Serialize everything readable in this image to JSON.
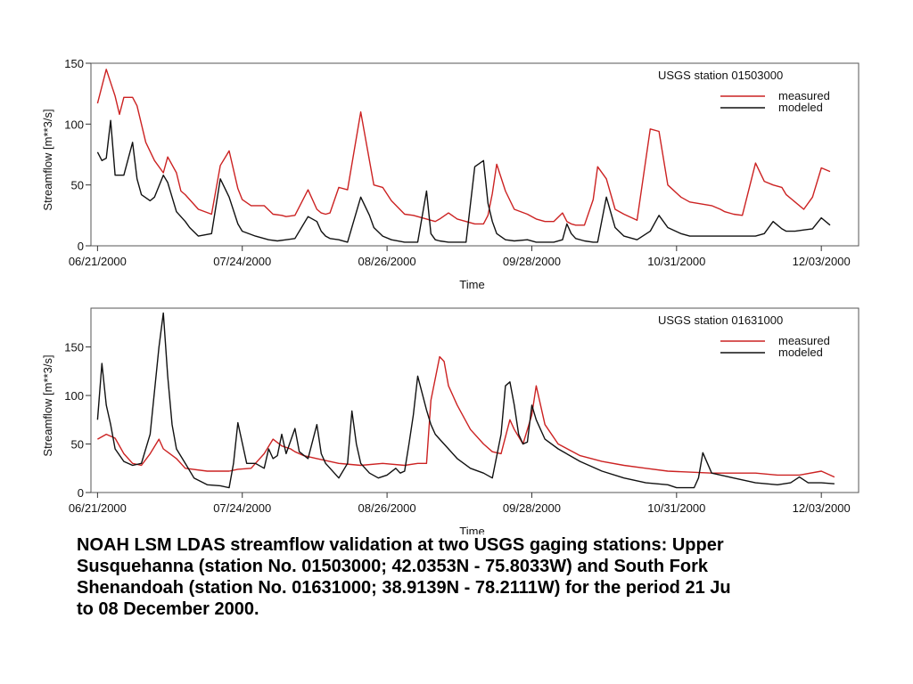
{
  "caption": {
    "lines": [
      "NOAH LSM LDAS streamflow validation at two USGS gaging stations:  Upper",
      "Susquehanna (station No. 01503000; 42.0353N - 75.8033W) and South Fork",
      "Shenandoah (station No. 01631000; 38.9139N - 78.2111W) for the period 21 Ju",
      "to 08 December 2000."
    ]
  },
  "colors": {
    "measured": "#cc2222",
    "modeled": "#111111"
  },
  "chart_data": [
    {
      "type": "line",
      "station_label": "USGS station 01503000",
      "xlabel": "Time",
      "ylabel": "Streamflow [m**3/s]",
      "ylim": [
        0,
        150
      ],
      "yticks": [
        0,
        50,
        100,
        150
      ],
      "xlim": [
        -1.5,
        173.5
      ],
      "xticks": [
        {
          "x": 0,
          "label": "06/21/2000"
        },
        {
          "x": 33,
          "label": "07/24/2000"
        },
        {
          "x": 66,
          "label": "08/26/2000"
        },
        {
          "x": 99,
          "label": "09/28/2000"
        },
        {
          "x": 132,
          "label": "10/31/2000"
        },
        {
          "x": 165,
          "label": "12/03/2000"
        }
      ],
      "legend": "top-right",
      "series": [
        {
          "name": "measured",
          "x": [
            0,
            2,
            4,
            5,
            6,
            8,
            9,
            11,
            13,
            15,
            16,
            18,
            19,
            20,
            23,
            26,
            28,
            30,
            32,
            33,
            35,
            38,
            40,
            42,
            43,
            45,
            48,
            50,
            51,
            52,
            53,
            55,
            57,
            60,
            63,
            65,
            67,
            70,
            72,
            73,
            75,
            76,
            77,
            78,
            80,
            82,
            84,
            86,
            88,
            89,
            90,
            91,
            93,
            95,
            98,
            100,
            102,
            104,
            106,
            107,
            108,
            109,
            111,
            113,
            114,
            116,
            118,
            120,
            123,
            126,
            128,
            130,
            133,
            135,
            140,
            142,
            143,
            145,
            147,
            150,
            152,
            154,
            156,
            157,
            159,
            161,
            163,
            165,
            167
          ],
          "values": [
            117,
            145,
            123,
            108,
            122,
            122,
            115,
            85,
            70,
            60,
            73,
            60,
            45,
            42,
            30,
            26,
            66,
            78,
            47,
            38,
            33,
            33,
            26,
            25,
            24,
            25,
            46,
            30,
            27,
            26,
            27,
            48,
            46,
            110,
            50,
            48,
            37,
            26,
            25,
            24,
            22,
            21,
            20,
            22,
            27,
            22,
            20,
            18,
            18,
            25,
            43,
            67,
            45,
            30,
            26,
            22,
            20,
            20,
            27,
            20,
            18,
            17,
            17,
            38,
            65,
            55,
            30,
            26,
            21,
            96,
            94,
            50,
            40,
            36,
            33,
            30,
            28,
            26,
            25,
            68,
            53,
            50,
            48,
            42,
            36,
            30,
            40,
            64,
            61
          ]
        },
        {
          "name": "modeled",
          "x": [
            0,
            1,
            2,
            3,
            4,
            5,
            6,
            8,
            9,
            10,
            12,
            13,
            15,
            16,
            18,
            20,
            21,
            23,
            26,
            28,
            30,
            32,
            33,
            36,
            39,
            41,
            43,
            45,
            48,
            50,
            51,
            52,
            53,
            55,
            57,
            60,
            62,
            63,
            65,
            67,
            70,
            72,
            73,
            75,
            76,
            77,
            78,
            80,
            82,
            84,
            86,
            88,
            89,
            90,
            91,
            93,
            95,
            98,
            100,
            102,
            104,
            106,
            107,
            108,
            109,
            111,
            113,
            114,
            116,
            118,
            120,
            123,
            126,
            128,
            130,
            133,
            135,
            137,
            139,
            141,
            143,
            145,
            147,
            150,
            152,
            154,
            156,
            157,
            159,
            161,
            163,
            165,
            167
          ],
          "values": [
            77,
            70,
            72,
            103,
            58,
            58,
            58,
            85,
            55,
            42,
            37,
            40,
            58,
            52,
            28,
            20,
            15,
            8,
            10,
            55,
            40,
            18,
            12,
            8,
            5,
            4,
            5,
            6,
            24,
            20,
            12,
            8,
            6,
            5,
            3,
            40,
            25,
            15,
            8,
            5,
            3,
            3,
            3,
            45,
            10,
            5,
            4,
            3,
            3,
            3,
            65,
            70,
            35,
            20,
            10,
            5,
            4,
            5,
            3,
            3,
            3,
            5,
            18,
            10,
            6,
            4,
            3,
            3,
            40,
            15,
            8,
            5,
            12,
            25,
            15,
            10,
            8,
            8,
            8,
            8,
            8,
            8,
            8,
            8,
            10,
            20,
            14,
            12,
            12,
            13,
            14,
            23,
            17
          ]
        }
      ]
    },
    {
      "type": "line",
      "station_label": "USGS station 01631000",
      "xlabel": "Time",
      "ylabel": "Streamflow [m**3/s]",
      "ylim": [
        0,
        190
      ],
      "yticks": [
        0,
        50,
        100,
        150
      ],
      "xlim": [
        -1.5,
        173.5
      ],
      "xticks": [
        {
          "x": 0,
          "label": "06/21/2000"
        },
        {
          "x": 33,
          "label": "07/24/2000"
        },
        {
          "x": 66,
          "label": "08/26/2000"
        },
        {
          "x": 99,
          "label": "09/28/2000"
        },
        {
          "x": 132,
          "label": "10/31/2000"
        },
        {
          "x": 165,
          "label": "12/03/2000"
        }
      ],
      "legend": "top-right",
      "series": [
        {
          "name": "measured",
          "x": [
            0,
            2,
            4,
            6,
            8,
            10,
            12,
            14,
            15,
            18,
            20,
            25,
            28,
            30,
            32,
            35,
            36,
            38,
            40,
            42,
            44,
            45,
            47,
            50,
            55,
            60,
            65,
            70,
            73,
            75,
            76,
            78,
            79,
            80,
            82,
            85,
            88,
            90,
            92,
            94,
            95,
            97,
            99,
            100,
            102,
            105,
            110,
            115,
            120,
            125,
            130,
            140,
            150,
            155,
            160,
            165,
            168
          ],
          "values": [
            55,
            60,
            56,
            40,
            30,
            28,
            40,
            55,
            45,
            35,
            25,
            22,
            22,
            22,
            24,
            25,
            30,
            40,
            55,
            48,
            45,
            42,
            38,
            35,
            30,
            28,
            30,
            28,
            30,
            30,
            95,
            140,
            135,
            110,
            90,
            65,
            50,
            42,
            40,
            75,
            65,
            50,
            80,
            110,
            70,
            50,
            38,
            32,
            28,
            25,
            22,
            20,
            20,
            18,
            18,
            22,
            16
          ]
        },
        {
          "name": "modeled",
          "x": [
            0,
            1,
            2,
            3,
            4,
            6,
            8,
            10,
            12,
            14,
            15,
            16,
            17,
            18,
            20,
            22,
            25,
            28,
            30,
            31,
            32,
            34,
            36,
            38,
            39,
            40,
            41,
            42,
            43,
            45,
            46,
            48,
            50,
            51,
            52,
            55,
            57,
            58,
            59,
            60,
            62,
            64,
            66,
            68,
            69,
            70,
            71,
            72,
            73,
            75,
            76,
            77,
            78,
            80,
            82,
            85,
            88,
            90,
            92,
            93,
            94,
            95,
            96,
            97,
            98,
            99,
            100,
            102,
            105,
            110,
            115,
            120,
            125,
            130,
            132,
            134,
            136,
            137,
            138,
            140,
            145,
            150,
            155,
            158,
            160,
            162,
            165,
            168
          ],
          "values": [
            75,
            133,
            90,
            70,
            45,
            32,
            28,
            30,
            60,
            150,
            185,
            120,
            70,
            45,
            30,
            15,
            8,
            7,
            5,
            30,
            72,
            30,
            30,
            25,
            45,
            35,
            38,
            60,
            40,
            66,
            42,
            35,
            70,
            40,
            30,
            15,
            30,
            84,
            50,
            30,
            20,
            15,
            18,
            25,
            20,
            22,
            50,
            80,
            120,
            85,
            70,
            60,
            55,
            45,
            35,
            25,
            20,
            15,
            60,
            110,
            114,
            90,
            60,
            50,
            52,
            90,
            75,
            55,
            45,
            32,
            22,
            15,
            10,
            8,
            5,
            5,
            5,
            15,
            41,
            20,
            15,
            10,
            8,
            10,
            16,
            10,
            10,
            9
          ]
        }
      ]
    }
  ]
}
